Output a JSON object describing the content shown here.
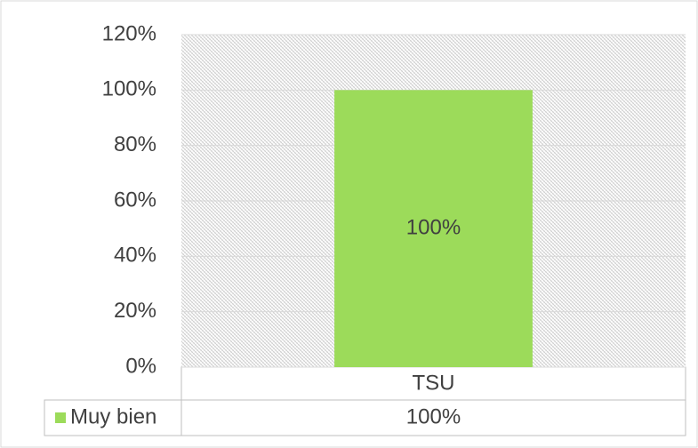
{
  "chart_data": {
    "type": "bar",
    "categories": [
      "TSU"
    ],
    "series": [
      {
        "name": "Muy bien",
        "color": "#9cdb5a",
        "values": [
          100
        ],
        "value_labels": [
          "100%"
        ]
      }
    ],
    "ylim": [
      0,
      120
    ],
    "yticks": [
      {
        "value": 0,
        "label": "0%"
      },
      {
        "value": 20,
        "label": "20%"
      },
      {
        "value": 40,
        "label": "40%"
      },
      {
        "value": 60,
        "label": "60%"
      },
      {
        "value": 80,
        "label": "80%"
      },
      {
        "value": 100,
        "label": "100%"
      },
      {
        "value": 120,
        "label": "120%"
      }
    ],
    "grid": true
  }
}
